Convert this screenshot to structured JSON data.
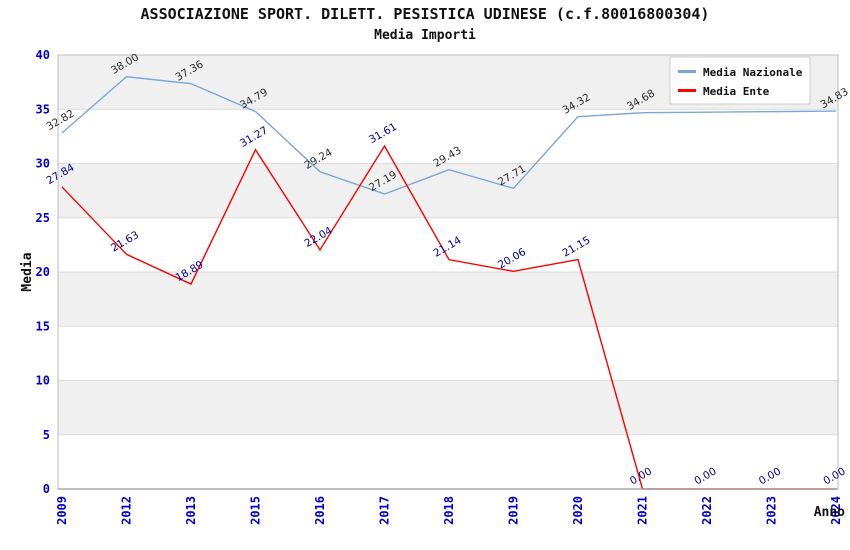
{
  "header": {
    "title": "ASSOCIAZIONE SPORT. DILETT. PESISTICA UDINESE (c.f.80016800304)",
    "subtitle": "Media Importi"
  },
  "legend": {
    "items": [
      {
        "label": "Media Nazionale",
        "color": "#7AA6DB"
      },
      {
        "label": "Media Ente",
        "color": "#FF0000"
      }
    ]
  },
  "colors": {
    "tick_label": "#0000CC",
    "national_series_label": "#2B2B2B",
    "ente_series_label": "#000099",
    "band_gray": "#F0F0F0",
    "band_white": "#FFFFFF",
    "plot_border": "#BDBDBD",
    "gridline": "#DCDCDC",
    "axis_line": "#A8A8A8"
  },
  "chart_data": {
    "type": "line",
    "title": "ASSOCIAZIONE SPORT. DILETT. PESISTICA UDINESE (c.f.80016800304)",
    "subtitle": "Media Importi",
    "x_label": "Anno",
    "y_label": "Media",
    "ylim": [
      0,
      40
    ],
    "yticks": [
      0,
      5,
      10,
      15,
      20,
      25,
      30,
      35,
      40
    ],
    "grid": "horizontal-bands",
    "legend_position": "top-right",
    "categories": [
      "2009",
      "2012",
      "2013",
      "2015",
      "2016",
      "2017",
      "2018",
      "2019",
      "2020",
      "2021",
      "2022",
      "2023",
      "2024"
    ],
    "series": [
      {
        "name": "Media Nazionale",
        "color": "#7AA6DB",
        "label_color": "#2B2B2B",
        "values": [
          32.82,
          38.0,
          37.36,
          34.79,
          29.24,
          27.19,
          29.43,
          27.71,
          34.32,
          34.68,
          34.73,
          34.78,
          34.83
        ],
        "labels": [
          "32.82",
          "38.00",
          "37.36",
          "34.79",
          "29.24",
          "27.19",
          "29.43",
          "27.71",
          "34.32",
          "34.68",
          "",
          "",
          "34.83"
        ]
      },
      {
        "name": "Media Ente",
        "color": "#FF0000",
        "label_color": "#000099",
        "values": [
          27.84,
          21.63,
          18.89,
          31.27,
          22.04,
          31.61,
          21.14,
          20.06,
          21.15,
          0,
          0,
          0,
          0
        ],
        "labels": [
          "27.84",
          "21.63",
          "18.89",
          "31.27",
          "22.04",
          "31.61",
          "21.14",
          "20.06",
          "21.15",
          "0.00",
          "0.00",
          "0.00",
          "0.00"
        ]
      }
    ]
  }
}
